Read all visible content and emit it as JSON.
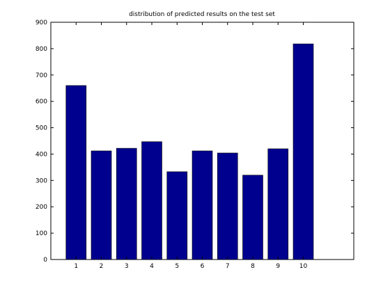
{
  "chart_data": {
    "type": "bar",
    "title": "distribution of predicted results on the test set",
    "xlabel": "",
    "ylabel": "",
    "categories": [
      "1",
      "2",
      "3",
      "4",
      "5",
      "6",
      "7",
      "8",
      "9",
      "10"
    ],
    "values": [
      660,
      412,
      422,
      447,
      333,
      412,
      404,
      320,
      420,
      818
    ],
    "xlim": [
      0,
      12
    ],
    "ylim": [
      0,
      900
    ],
    "yticks": [
      0,
      100,
      200,
      300,
      400,
      500,
      600,
      700,
      800,
      900
    ],
    "grid": false,
    "bar_color": "#00008f",
    "bar_edge_color": "#000000"
  }
}
